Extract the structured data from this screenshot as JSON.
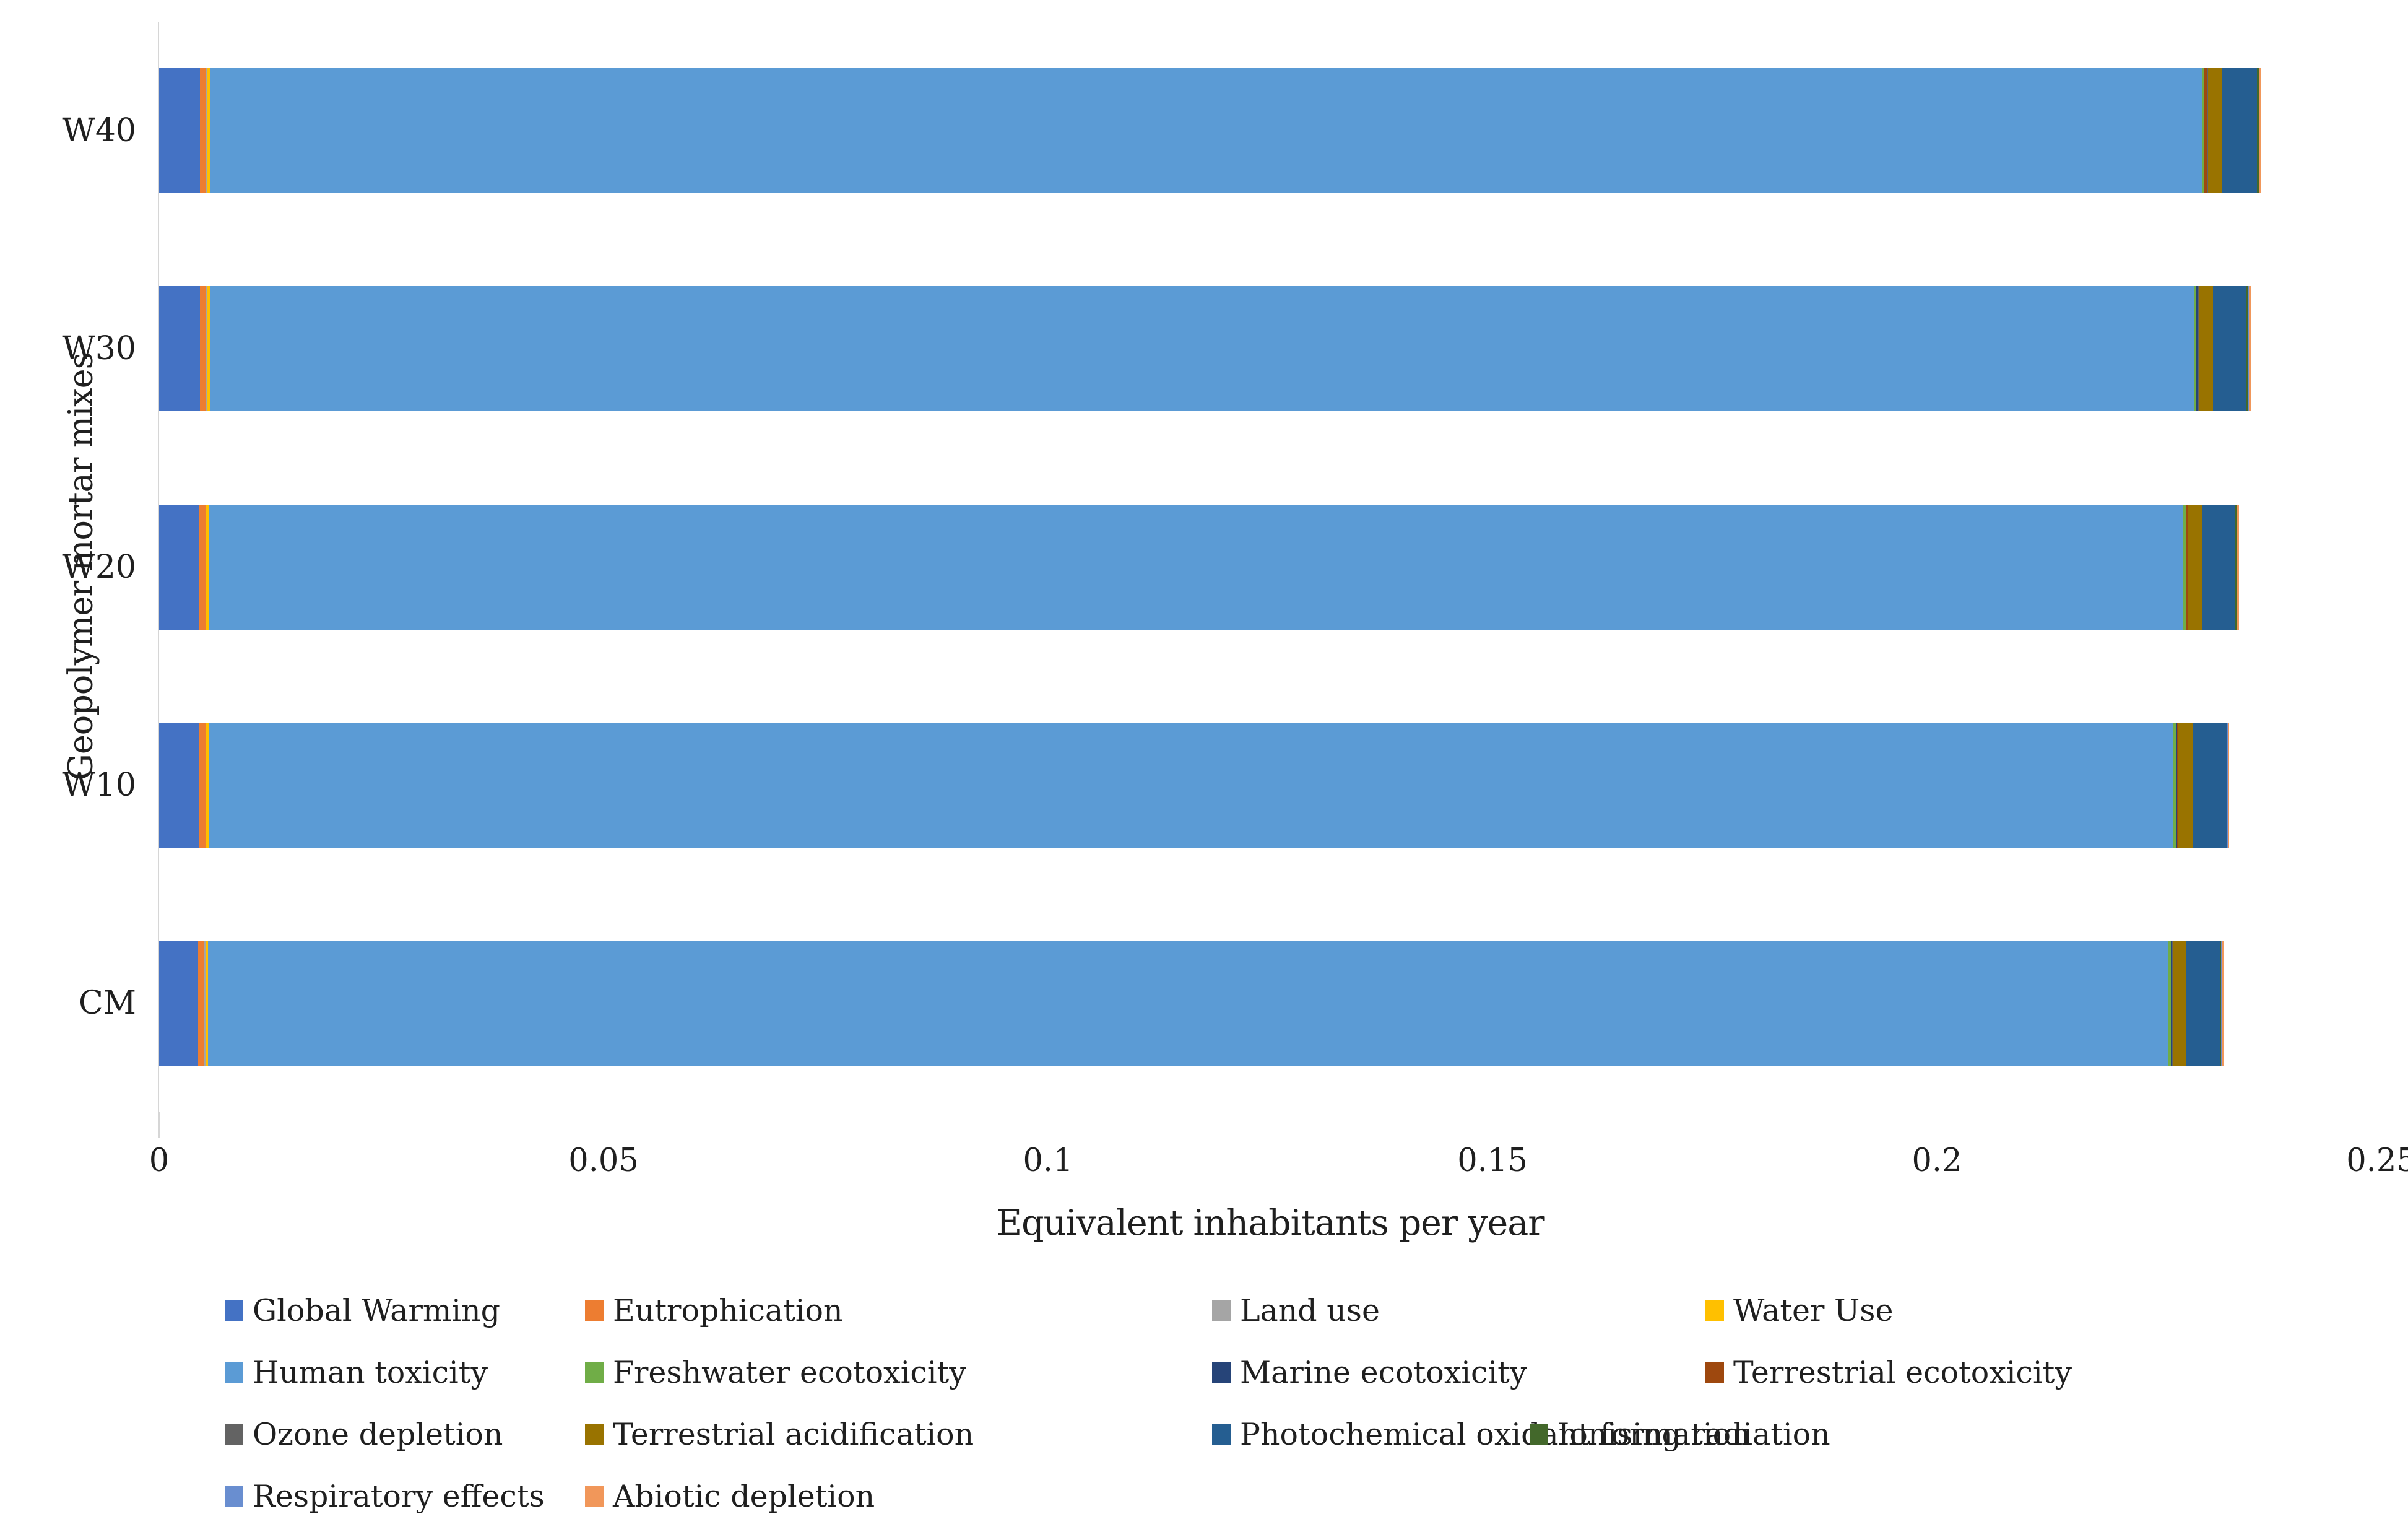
{
  "chart": {
    "y_axis_title": "Geopolymer mortar mixes",
    "x_axis_title": "Equivalent inhabitants per year",
    "x_ticks": [
      {
        "label": "0",
        "value": 0
      },
      {
        "label": "0.05",
        "value": 0.05
      },
      {
        "label": "0.1",
        "value": 0.1
      },
      {
        "label": "0.15",
        "value": 0.15
      },
      {
        "label": "0.2",
        "value": 0.2
      },
      {
        "label": "0.25",
        "value": 0.25
      }
    ]
  },
  "chart_data": {
    "type": "bar",
    "orientation": "horizontal",
    "stacked": true,
    "title": "",
    "xlabel": "Equivalent inhabitants per year",
    "ylabel": "Geopolymer mortar mixes",
    "xlim": [
      0,
      0.25
    ],
    "grid": false,
    "legend_position": "bottom",
    "categories": [
      "W40",
      "W30",
      "W20",
      "W10",
      "CM"
    ],
    "series": [
      {
        "name": "Global Warming",
        "color": "#4472C4",
        "values": [
          0.0046,
          0.0046,
          0.0045,
          0.0045,
          0.0044
        ]
      },
      {
        "name": "Eutrophication",
        "color": "#ED7D31",
        "values": [
          0.0007,
          0.0007,
          0.0007,
          0.0007,
          0.0007
        ]
      },
      {
        "name": "Land use",
        "color": "#A5A5A5",
        "values": [
          0.0001,
          0.0001,
          0.0001,
          0.0001,
          0.0001
        ]
      },
      {
        "name": "Water Use",
        "color": "#FFC000",
        "values": [
          0.0003,
          0.0003,
          0.0003,
          0.0003,
          0.0003
        ]
      },
      {
        "name": "Human toxicity",
        "color": "#5B9BD5",
        "values": [
          0.2241,
          0.2232,
          0.2221,
          0.221,
          0.2205
        ]
      },
      {
        "name": "Freshwater ecotoxicity",
        "color": "#70AD47",
        "values": [
          0.0002,
          0.0003,
          0.0003,
          0.0003,
          0.0003
        ]
      },
      {
        "name": "Marine ecotoxicity",
        "color": "#264478",
        "values": [
          0.0001,
          0.0001,
          0.0001,
          0.0001,
          0.0001
        ]
      },
      {
        "name": "Terrestrial ecotoxicity",
        "color": "#9E480E",
        "values": [
          0.0003,
          0.0001,
          0.0001,
          0.0001,
          0.0001
        ]
      },
      {
        "name": "Ozone depletion",
        "color": "#636363",
        "values": [
          0.0001,
          0.0001,
          0.0001,
          0.0001,
          0.0001
        ]
      },
      {
        "name": "Terrestrial acidification",
        "color": "#997300",
        "values": [
          0.0016,
          0.0016,
          0.0016,
          0.0016,
          0.0015
        ]
      },
      {
        "name": "Photochemical oxidant formation",
        "color": "#255E91",
        "values": [
          0.0039,
          0.0037,
          0.0037,
          0.0038,
          0.0038
        ]
      },
      {
        "name": "Ionising radiation",
        "color": "#43682B",
        "values": [
          0.0002,
          0.0002,
          0.0001,
          0.0001,
          0.0001
        ]
      },
      {
        "name": "Respiratory effects",
        "color": "#698ED0",
        "values": [
          0.0001,
          0.0001,
          0.0001,
          0.0001,
          0.0001
        ]
      },
      {
        "name": "Abiotic depletion",
        "color": "#F1975A",
        "values": [
          0.0001,
          0.0002,
          0.0002,
          0.0001,
          0.0002
        ]
      }
    ]
  }
}
